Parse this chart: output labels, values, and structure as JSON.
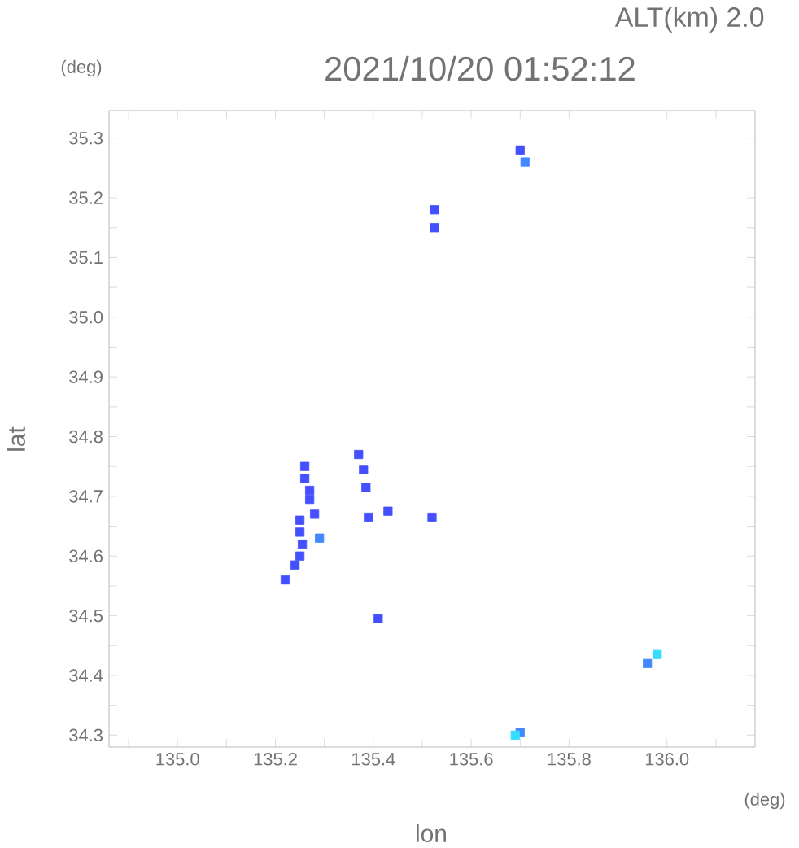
{
  "chart_data": {
    "type": "scatter",
    "title": "2021/10/20 01:52:12",
    "subtitle": "ALT(km) 2.0",
    "xlabel": "lon",
    "ylabel": "lat",
    "annotations": [
      "(deg)",
      "(deg)"
    ],
    "xlim": [
      134.86,
      136.18
    ],
    "ylim": [
      34.28,
      35.346
    ],
    "xticks": [
      {
        "value": 134.9,
        "label": null
      },
      {
        "value": 135.0,
        "label": "135.0"
      },
      {
        "value": 135.1,
        "label": null
      },
      135.2,
      {
        "value": 135.3,
        "label": null
      },
      135.4,
      {
        "value": 135.5,
        "label": null
      },
      135.6,
      {
        "value": 135.7,
        "label": null
      },
      135.8,
      {
        "value": 135.9,
        "label": null
      },
      {
        "value": 136.0,
        "label": "136.0"
      },
      {
        "value": 136.1,
        "label": null
      }
    ],
    "yticks": [
      34.3,
      {
        "value": 34.35,
        "label": null
      },
      34.4,
      {
        "value": 34.45,
        "label": null
      },
      34.5,
      {
        "value": 34.55,
        "label": null
      },
      34.6,
      {
        "value": 34.65,
        "label": null
      },
      34.7,
      {
        "value": 34.75,
        "label": null
      },
      34.8,
      {
        "value": 34.85,
        "label": null
      },
      34.9,
      {
        "value": 34.95,
        "label": null
      },
      {
        "value": 35.0,
        "label": "35.0"
      },
      {
        "value": 35.05,
        "label": null
      },
      35.1,
      {
        "value": 35.15,
        "label": null
      },
      35.2,
      {
        "value": 35.25,
        "label": null
      },
      35.3
    ],
    "grid": false,
    "marker": "square",
    "series": [
      {
        "color": "#4450ff",
        "x": [
          135.7,
          135.525,
          135.525,
          135.37,
          135.38,
          135.385,
          135.39,
          135.43,
          135.52,
          135.26,
          135.26,
          135.27,
          135.27,
          135.28,
          135.25,
          135.25,
          135.255,
          135.25,
          135.24,
          135.22,
          135.41
        ],
        "values": [
          35.28,
          35.18,
          35.15,
          34.77,
          34.745,
          34.715,
          34.665,
          34.675,
          34.665,
          34.75,
          34.73,
          34.71,
          34.695,
          34.67,
          34.66,
          34.64,
          34.62,
          34.6,
          34.585,
          34.56,
          34.495
        ]
      },
      {
        "color": "#4488ff",
        "x": [
          135.71,
          135.29,
          135.96,
          135.7
        ],
        "values": [
          35.26,
          34.63,
          34.42,
          34.305
        ]
      },
      {
        "color": "#33ddff",
        "x": [
          135.98,
          135.69
        ],
        "values": [
          34.435,
          34.3
        ]
      }
    ]
  }
}
